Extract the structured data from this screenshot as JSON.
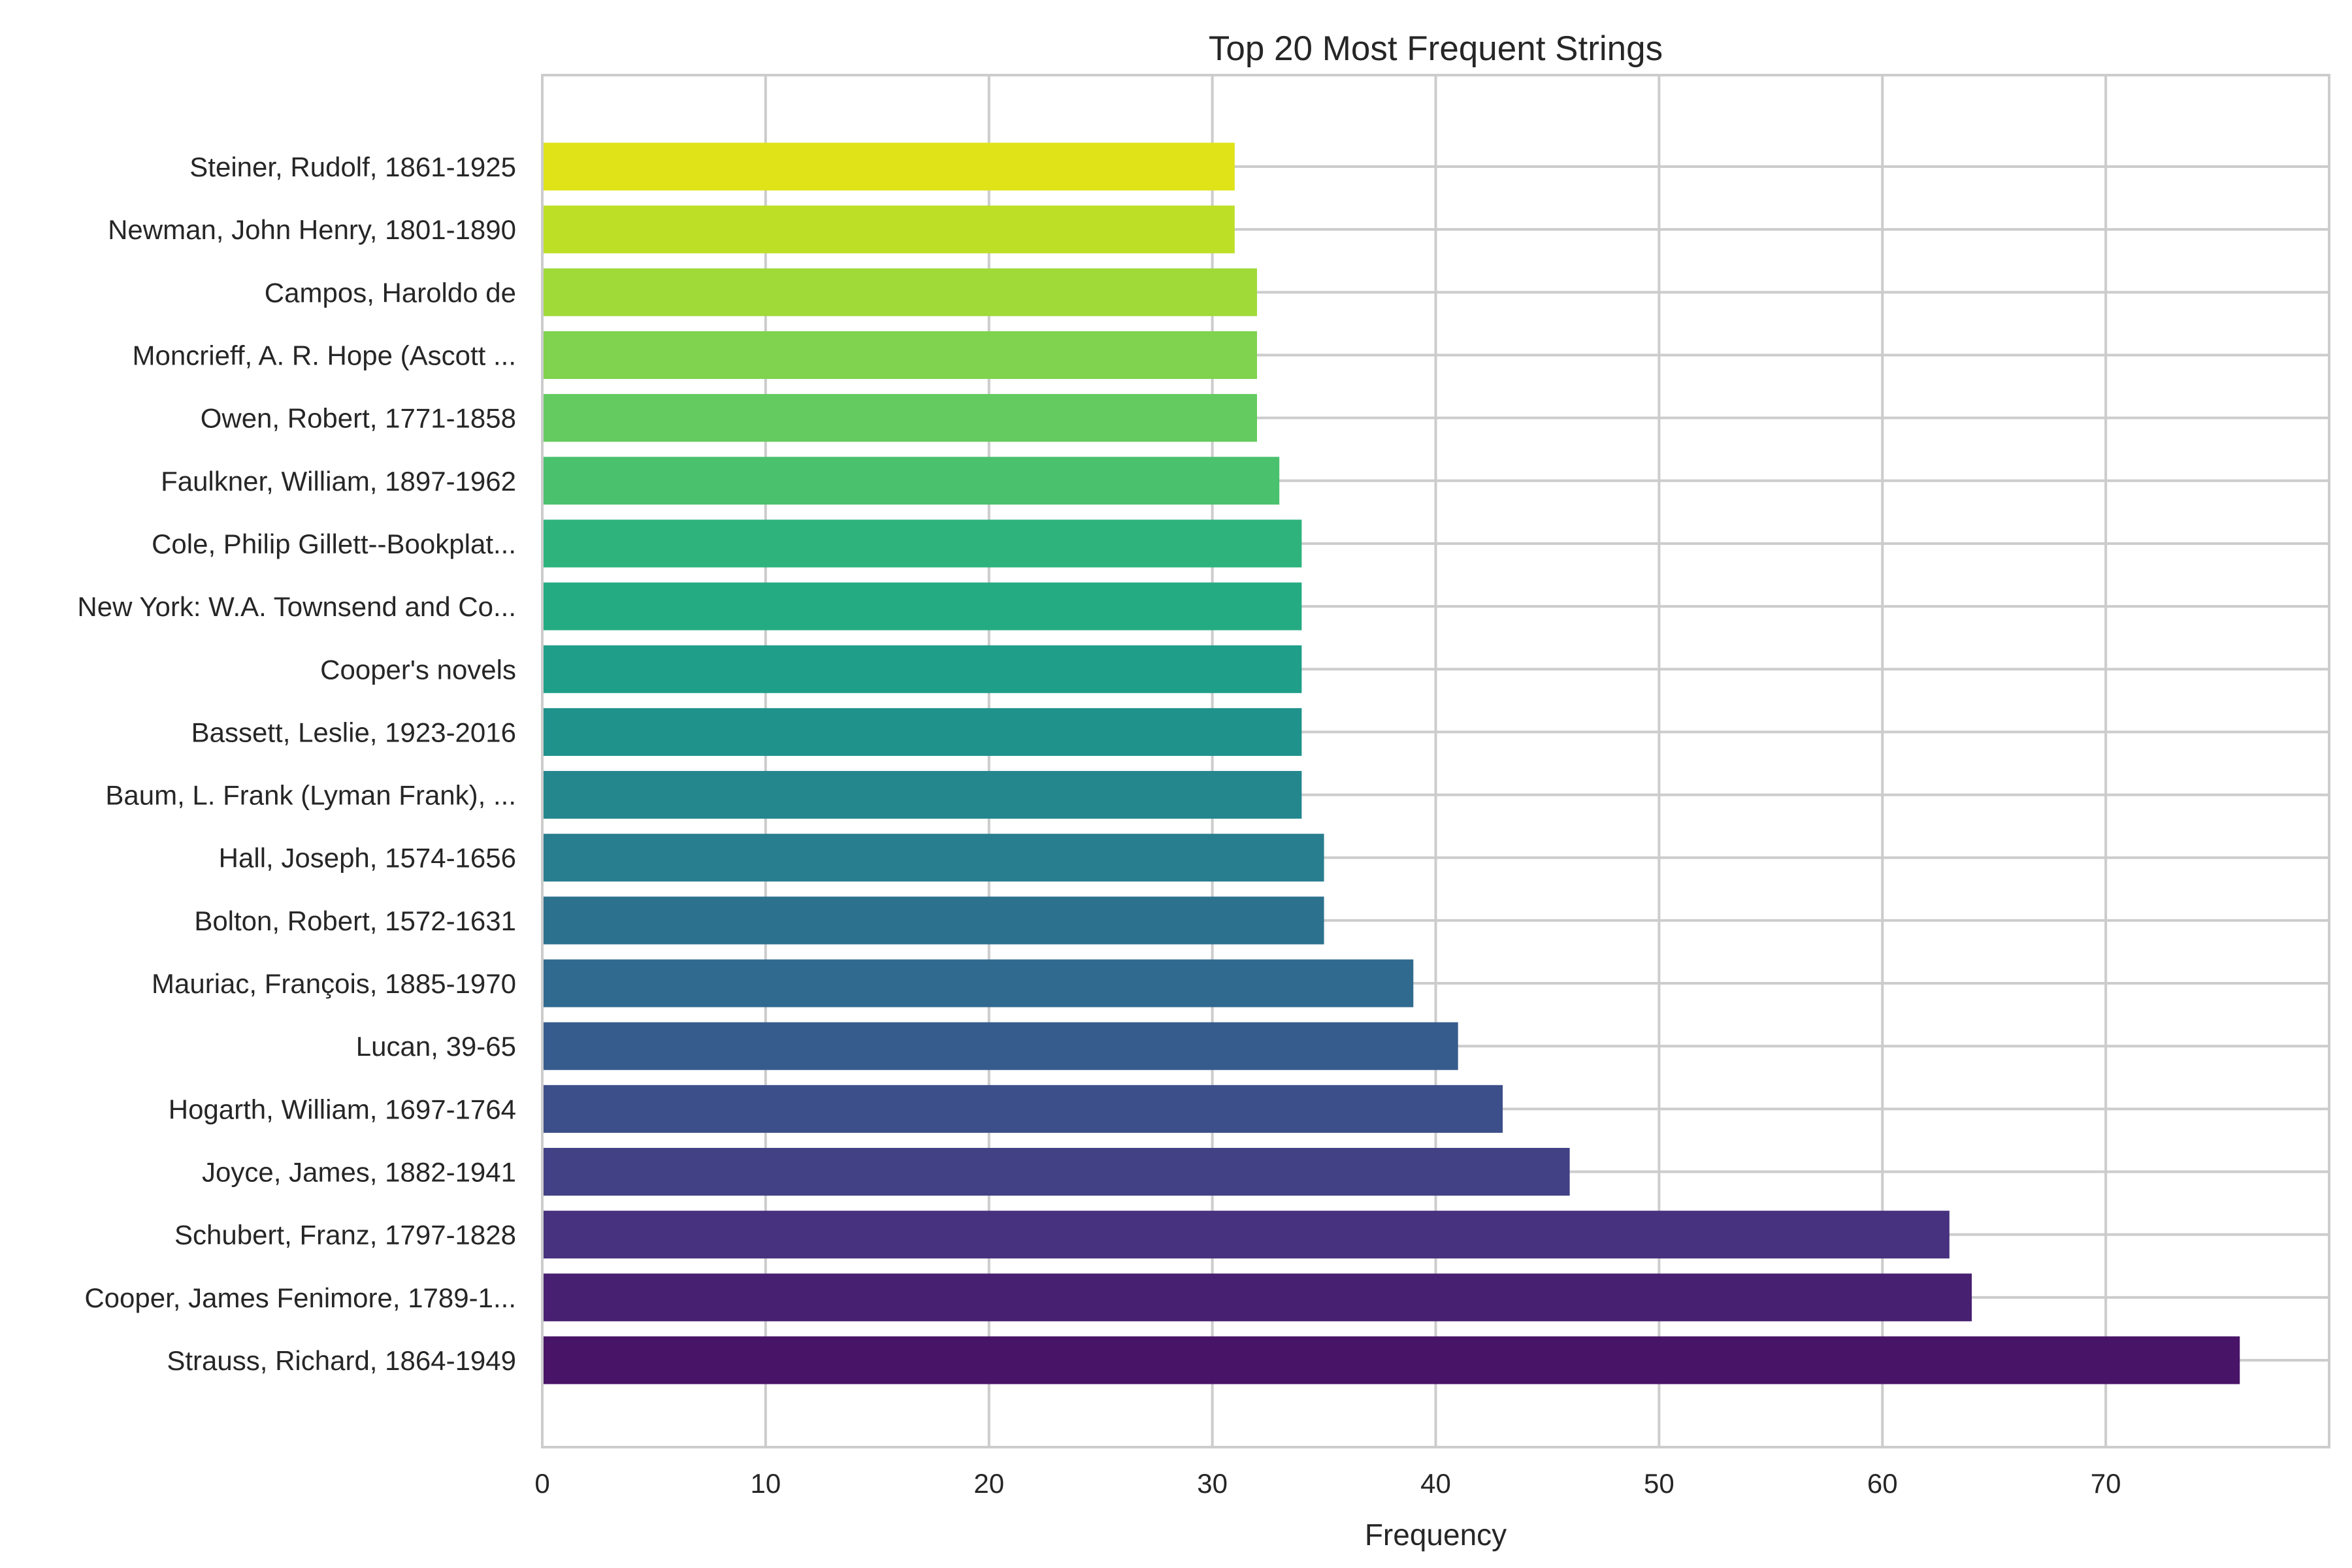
{
  "chart_data": {
    "type": "bar",
    "orientation": "horizontal",
    "title": "Top 20 Most Frequent Strings",
    "xlabel": "Frequency",
    "ylabel": "",
    "xlim": [
      0,
      80
    ],
    "x_ticks": [
      0,
      10,
      20,
      30,
      40,
      50,
      60,
      70
    ],
    "x_tick_labels": [
      "0",
      "10",
      "20",
      "30",
      "40",
      "50",
      "60",
      "70"
    ],
    "grid": true,
    "legend": "none",
    "colormap": "viridis",
    "categories": [
      "Strauss, Richard, 1864-1949",
      "Cooper, James Fenimore, 1789-1...",
      "Schubert, Franz, 1797-1828",
      "Joyce, James, 1882-1941",
      "Hogarth, William, 1697-1764",
      "Lucan, 39-65",
      "Mauriac, François, 1885-1970",
      "Bolton, Robert, 1572-1631",
      "Hall, Joseph, 1574-1656",
      "Baum, L. Frank (Lyman Frank), ...",
      "Bassett, Leslie, 1923-2016",
      "Cooper's novels",
      "New York: W.A. Townsend and Co...",
      "Cole, Philip Gillett--Bookplat...",
      "Faulkner, William, 1897-1962",
      "Owen, Robert, 1771-1858",
      "Moncrieff, A. R. Hope (Ascott ...",
      "Campos, Haroldo de",
      "Newman, John Henry, 1801-1890",
      "Steiner, Rudolf, 1861-1925"
    ],
    "values": [
      76,
      64,
      63,
      46,
      43,
      41,
      39,
      35,
      35,
      34,
      34,
      34,
      34,
      34,
      33,
      32,
      32,
      32,
      31,
      31
    ],
    "colors": [
      "#481467",
      "#482071",
      "#46327e",
      "#424186",
      "#3c4f8a",
      "#365c8d",
      "#306a8e",
      "#2c728e",
      "#287d8e",
      "#24878e",
      "#20928c",
      "#1f9e89",
      "#25ab82",
      "#2eb37c",
      "#4ac16d",
      "#63cb5f",
      "#7fd34e",
      "#a0da39",
      "#bddf26",
      "#dfe318"
    ]
  }
}
